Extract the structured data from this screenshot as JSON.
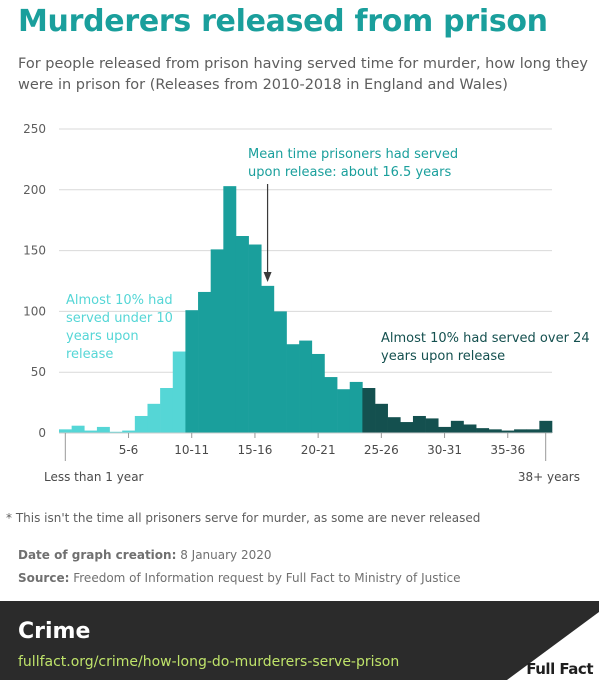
{
  "header": {
    "title": "Murderers released from prison",
    "subtitle": "For people released from prison having served time for murder, how long they were in prison for (Releases from 2010-2018 in England and Wales)"
  },
  "annotations": {
    "mean": "Mean time prisoners had served upon release: about 16.5 years",
    "under10": "Almost 10% had served under 10 years upon release",
    "over24": "Almost 10% had served over 24 years upon release"
  },
  "notes": {
    "footnote": "* This isn't the time all prisoners serve for murder, as some are never released",
    "date_label": "Date of graph creation:",
    "date_value": "8 January 2020",
    "source_label": "Source:",
    "source_value": "Freedom of Information request by Full Fact to Ministry of Justice"
  },
  "footer": {
    "section": "Crime",
    "url": "fullfact.org/crime/how-long-do-murderers-serve-prison",
    "logo_text": "Full Fact"
  },
  "colors": {
    "title": "#1a9f9c",
    "light": "#55d6d6",
    "mid": "#1a9f9c",
    "dark": "#14504f"
  },
  "chart_data": {
    "type": "bar",
    "ylim": [
      0,
      250
    ],
    "yticks": [
      0,
      50,
      100,
      150,
      200,
      250
    ],
    "grid": true,
    "categories": [
      "<1",
      "1",
      "2",
      "3",
      "4",
      "5",
      "6",
      "7",
      "8",
      "9",
      "10",
      "11",
      "12",
      "13",
      "14",
      "15",
      "16",
      "17",
      "18",
      "19",
      "20",
      "21",
      "22",
      "23",
      "24",
      "25",
      "26",
      "27",
      "28",
      "29",
      "30",
      "31",
      "32",
      "33",
      "34",
      "35",
      "36",
      "37",
      "38+"
    ],
    "values": [
      3,
      6,
      2,
      5,
      1,
      2,
      14,
      24,
      37,
      67,
      101,
      116,
      151,
      203,
      162,
      155,
      121,
      100,
      73,
      76,
      65,
      46,
      36,
      42,
      37,
      24,
      13,
      9,
      14,
      12,
      5,
      10,
      7,
      4,
      3,
      2,
      3,
      3,
      10
    ],
    "groups": [
      "light",
      "light",
      "light",
      "light",
      "light",
      "light",
      "light",
      "light",
      "light",
      "light",
      "mid",
      "mid",
      "mid",
      "mid",
      "mid",
      "mid",
      "mid",
      "mid",
      "mid",
      "mid",
      "mid",
      "mid",
      "mid",
      "mid",
      "dark",
      "dark",
      "dark",
      "dark",
      "dark",
      "dark",
      "dark",
      "dark",
      "dark",
      "dark",
      "dark",
      "dark",
      "dark",
      "dark",
      "dark"
    ],
    "xtick_labels": [
      "5-6",
      "10-11",
      "15-16",
      "20-21",
      "25-26",
      "30-31",
      "35-36"
    ],
    "xtick_indices": [
      5,
      10,
      15,
      20,
      25,
      30,
      35
    ],
    "end_labels": [
      "Less than 1 year",
      "38+ years"
    ],
    "mean_marker": 16.5
  }
}
